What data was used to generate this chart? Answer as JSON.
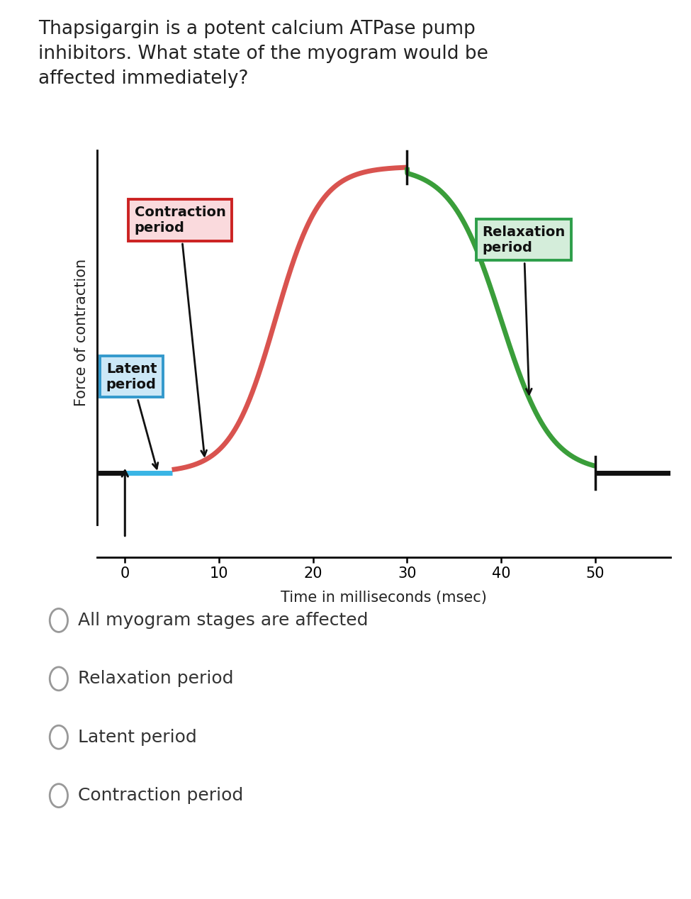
{
  "title": "Thapsigargin is a potent calcium ATPase pump\ninhibitors. What state of the myogram would be\naffected immediately?",
  "xlabel": "Time in milliseconds (msec)",
  "ylabel": "Force of contraction",
  "xlim": [
    -3,
    58
  ],
  "bg_color": "#ffffff",
  "contraction_color": "#d9534f",
  "relaxation_color": "#3a9e3a",
  "latent_color": "#3ab5e5",
  "baseline_color": "#111111",
  "tick_major": [
    0,
    10,
    20,
    30,
    40,
    50
  ],
  "contraction_box": {
    "facecolor": "#fadadd",
    "edgecolor": "#cc2222",
    "label": "Contraction\nperiod"
  },
  "latent_box": {
    "facecolor": "#cce8f7",
    "edgecolor": "#3399cc",
    "label": "Latent\nperiod"
  },
  "relaxation_box": {
    "facecolor": "#d4edda",
    "edgecolor": "#2d9e4a",
    "label": "Relaxation\nperiod"
  },
  "choices": [
    "All myogram stages are affected",
    "Relaxation period",
    "Latent period",
    "Contraction period"
  ]
}
